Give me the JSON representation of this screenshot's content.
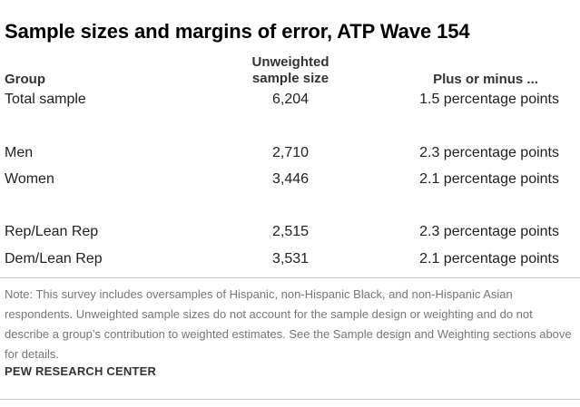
{
  "title": "Sample sizes and margins of error, ATP Wave 154",
  "headers": {
    "group": "Group",
    "n_line1": "Unweighted",
    "n_line2": "sample size",
    "moe": "Plus or minus ..."
  },
  "rows": [
    {
      "group": "Total sample",
      "n": "6,204",
      "moe": "1.5 percentage points"
    },
    {
      "group": "Men",
      "n": "2,710",
      "moe": "2.3 percentage points"
    },
    {
      "group": "Women",
      "n": "3,446",
      "moe": "2.1 percentage points"
    },
    {
      "group": "Rep/Lean Rep",
      "n": "2,515",
      "moe": "2.3 percentage points"
    },
    {
      "group": "Dem/Lean Rep",
      "n": "3,531",
      "moe": "2.1 percentage points"
    }
  ],
  "note": "Note: This survey includes oversamples of Hispanic, non-Hispanic Black, and non-Hispanic Asian respondents. Unweighted sample sizes do not account for the sample design or weighting and do not describe a group’s contribution to weighted estimates. See the Sample design and Weighting sections above for details.",
  "source": "PEW RESEARCH CENTER"
}
